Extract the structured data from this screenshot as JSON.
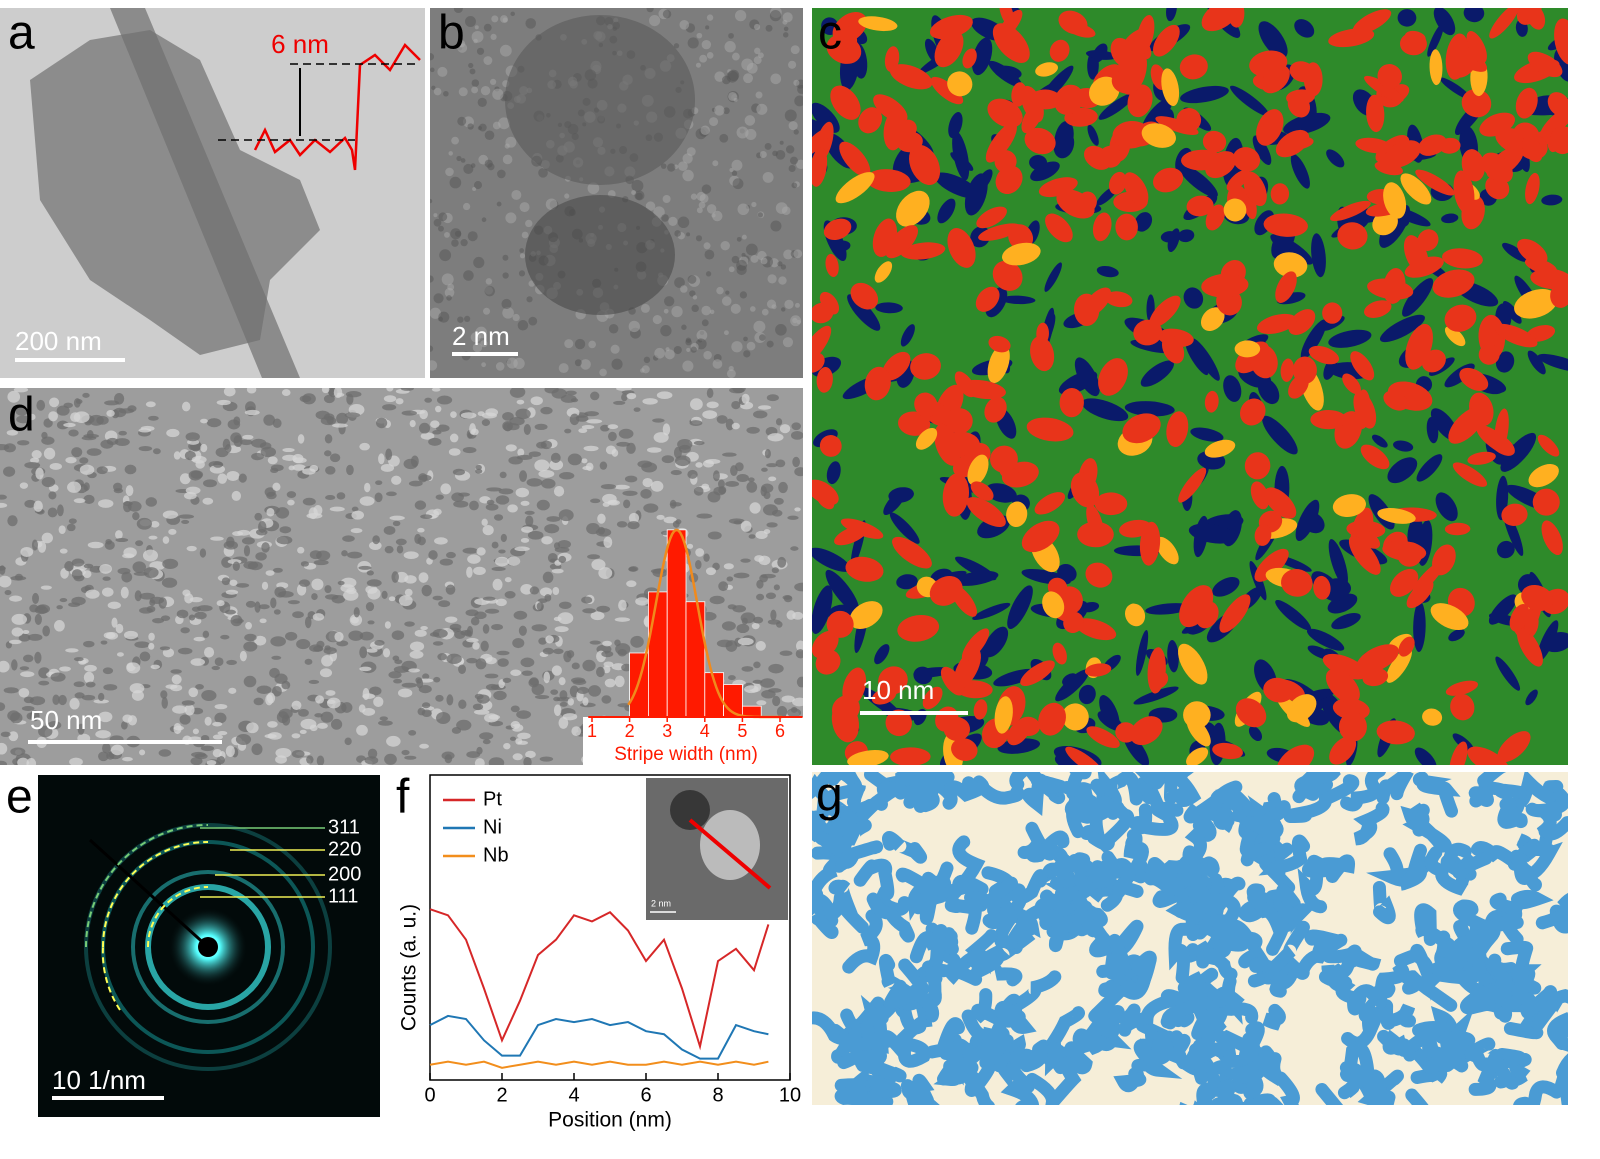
{
  "panels": {
    "a": {
      "label": "a",
      "scale_bar": "200 nm",
      "profile_label": "6 nm"
    },
    "b": {
      "label": "b",
      "scale_bar": "2 nm"
    },
    "c": {
      "label": "c",
      "scale_bar": "10 nm"
    },
    "d": {
      "label": "d",
      "scale_bar": "50 nm",
      "inset": {
        "type": "histogram",
        "xlabel": "Stripe width (nm)",
        "bins": [
          2,
          2.5,
          3,
          3.5,
          4,
          4.5,
          5,
          5.5
        ],
        "values": [
          65,
          127,
          190,
          117,
          45,
          33,
          11
        ],
        "xlim": [
          0.9,
          6.6
        ],
        "xticks": [
          1,
          2,
          3,
          4,
          5,
          6
        ],
        "ylim": [
          0,
          200
        ],
        "color": "#ff1a00",
        "fit": {
          "mean": 3.25,
          "sigma": 0.55,
          "peak": 190,
          "color": "#f08a1c"
        }
      }
    },
    "e": {
      "label": "e",
      "scale_bar": "10 1/nm",
      "rings": [
        "311",
        "220",
        "200",
        "111"
      ]
    },
    "f": {
      "label": "f",
      "inset_scale_bar": "2 nm",
      "chart": {
        "type": "line",
        "xlabel": "Position (nm)",
        "ylabel": "Counts (a. u.)",
        "xlim": [
          0,
          10
        ],
        "xticks": [
          0,
          2,
          4,
          6,
          8,
          10
        ],
        "ylim": [
          0,
          100
        ],
        "x": [
          0,
          0.5,
          1,
          1.5,
          2,
          2.5,
          3,
          3.5,
          4,
          4.5,
          5,
          5.5,
          6,
          6.5,
          7,
          7.5,
          8,
          8.5,
          9,
          9.4
        ],
        "series": [
          {
            "name": "Pt",
            "color": "#d62728",
            "values": [
              56,
              54,
              46,
              30,
              13,
              26,
              41,
              46,
              54,
              52,
              55,
              49,
              39,
              46,
              30,
              11,
              39,
              43,
              36,
              51
            ]
          },
          {
            "name": "Ni",
            "color": "#1f77b4",
            "values": [
              18,
              21,
              20,
              13,
              8,
              8,
              18,
              20,
              19,
              20,
              18,
              19,
              16,
              15,
              10,
              7,
              7,
              18,
              16,
              15
            ]
          },
          {
            "name": "Nb",
            "color": "#f28e1c",
            "values": [
              5,
              6,
              5,
              6,
              4,
              5,
              6,
              5,
              6,
              5,
              6,
              5,
              5,
              6,
              5,
              6,
              5,
              6,
              5,
              6
            ]
          }
        ]
      }
    },
    "g": {
      "label": "g"
    }
  }
}
